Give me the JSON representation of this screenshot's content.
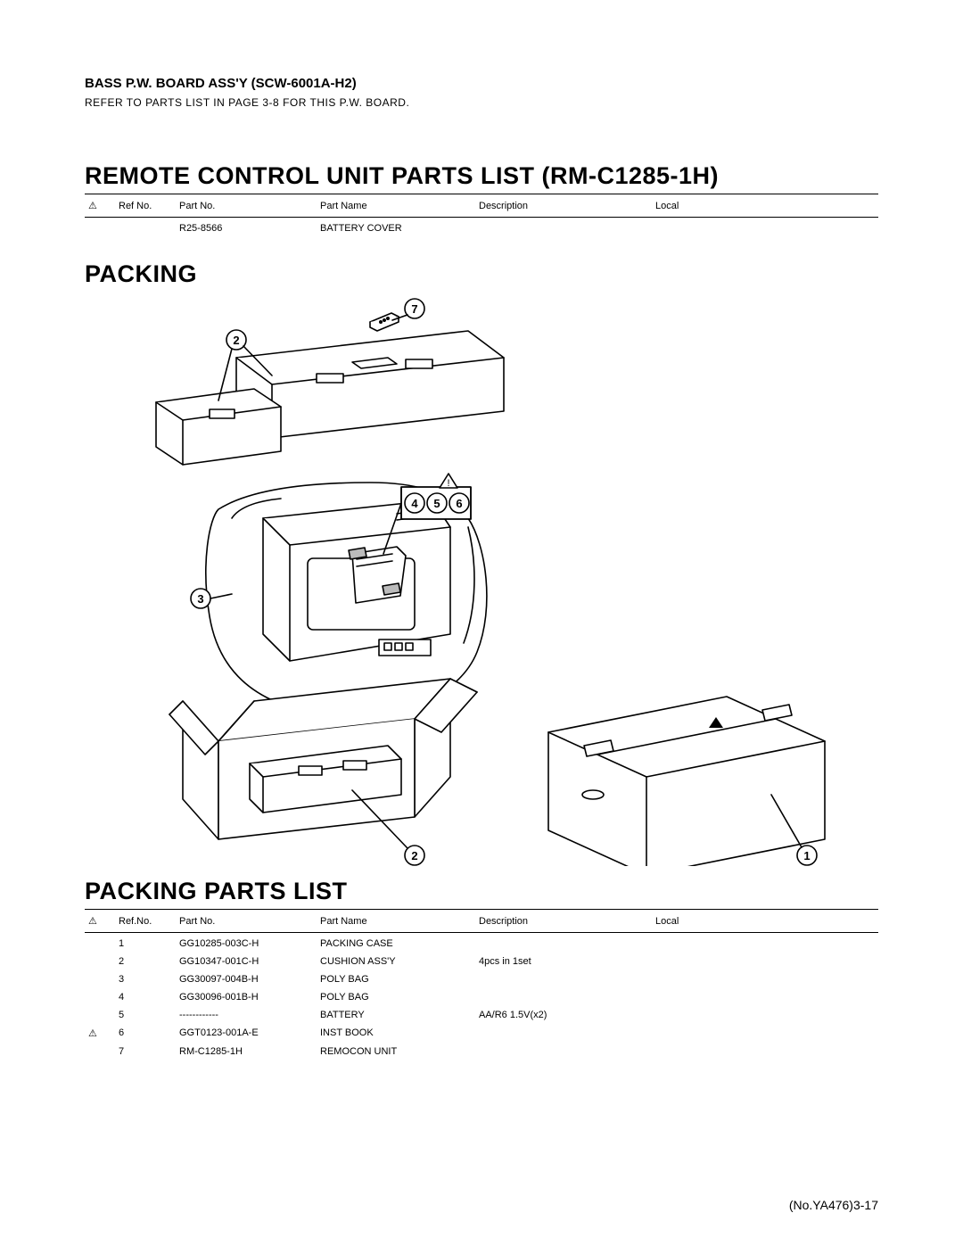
{
  "colors": {
    "text": "#000000",
    "bg": "#ffffff",
    "line": "#000000",
    "fill": "#ffffff"
  },
  "bass_board": {
    "title": "BASS P.W. BOARD ASS'Y (SCW-6001A-H2)",
    "note": "REFER  TO PARTS LIST IN PAGE 3-8 FOR THIS P.W. BOARD."
  },
  "remote_list": {
    "title": "REMOTE CONTROL UNIT PARTS LIST (RM-C1285-1H)",
    "columns": {
      "warn": "⚠",
      "ref": "Ref No.",
      "pn": "Part No.",
      "name": "Part Name",
      "desc": "Description",
      "local": "Local"
    },
    "rows": [
      {
        "warn": "",
        "ref": "",
        "pn": "R25-8566",
        "name": "BATTERY COVER",
        "desc": "",
        "local": ""
      }
    ]
  },
  "packing_title": "PACKING",
  "packing_list": {
    "title": "PACKING PARTS LIST",
    "columns": {
      "warn": "⚠",
      "ref": "Ref.No.",
      "pn": "Part No.",
      "name": "Part Name",
      "desc": "Description",
      "local": "Local"
    },
    "rows": [
      {
        "warn": "",
        "ref": "1",
        "pn": "GG10285-003C-H",
        "name": "PACKING CASE",
        "desc": "",
        "local": ""
      },
      {
        "warn": "",
        "ref": "2",
        "pn": "GG10347-001C-H",
        "name": "CUSHION ASS'Y",
        "desc": "4pcs in 1set",
        "local": ""
      },
      {
        "warn": "",
        "ref": "3",
        "pn": "GG30097-004B-H",
        "name": "POLY BAG",
        "desc": "",
        "local": ""
      },
      {
        "warn": "",
        "ref": "4",
        "pn": "GG30096-001B-H",
        "name": "POLY BAG",
        "desc": "",
        "local": ""
      },
      {
        "warn": "",
        "ref": "5",
        "pn": "------------",
        "name": "BATTERY",
        "desc": "AA/R6 1.5V(x2)",
        "local": ""
      },
      {
        "warn": "⚠",
        "ref": "6",
        "pn": "GGT0123-001A-E",
        "name": "INST BOOK",
        "desc": "",
        "local": ""
      },
      {
        "warn": "",
        "ref": "7",
        "pn": "RM-C1285-1H",
        "name": "REMOCON UNIT",
        "desc": "",
        "local": ""
      }
    ]
  },
  "diagram": {
    "callouts": [
      "1",
      "2",
      "3",
      "4",
      "5",
      "6",
      "7"
    ],
    "callout_fontsize": 13,
    "callout_stroke": "#000000",
    "callout_fill": "#ffffff",
    "line_stroke": "#000000",
    "line_width": 1.6
  },
  "footer": "(No.YA476)3-17"
}
